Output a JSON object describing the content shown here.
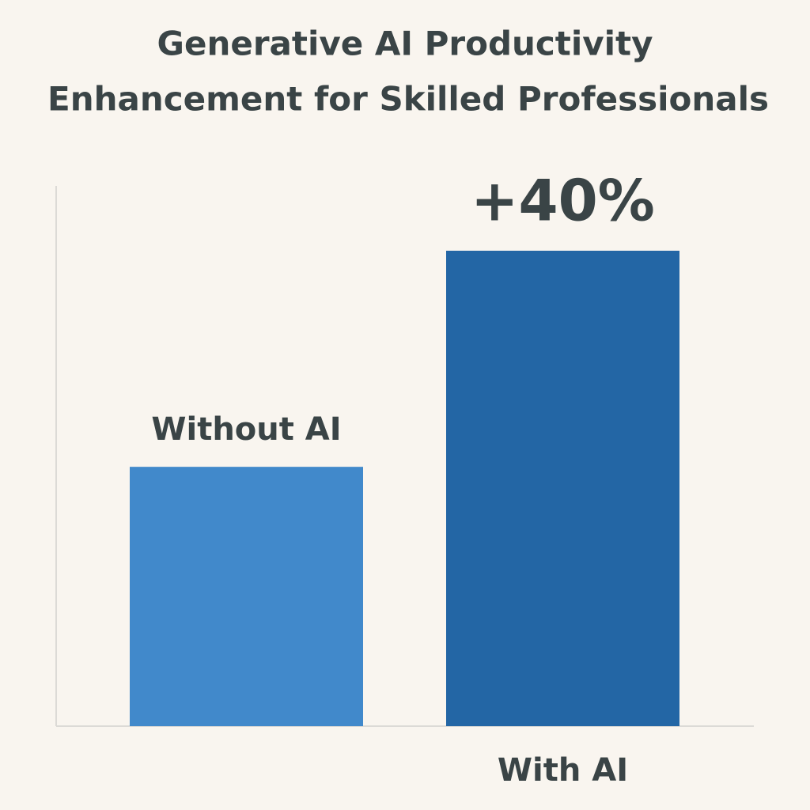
{
  "chart_data": {
    "type": "bar",
    "title": [
      "Generative AI Productivity",
      "Enhancement for Skilled Professionals"
    ],
    "categories": [
      "Without AI",
      "With AI"
    ],
    "values": [
      48,
      88
    ],
    "colors": [
      "#4189cb",
      "#2366a5"
    ],
    "ylim": [
      0,
      100
    ],
    "annotation": "+40%"
  }
}
